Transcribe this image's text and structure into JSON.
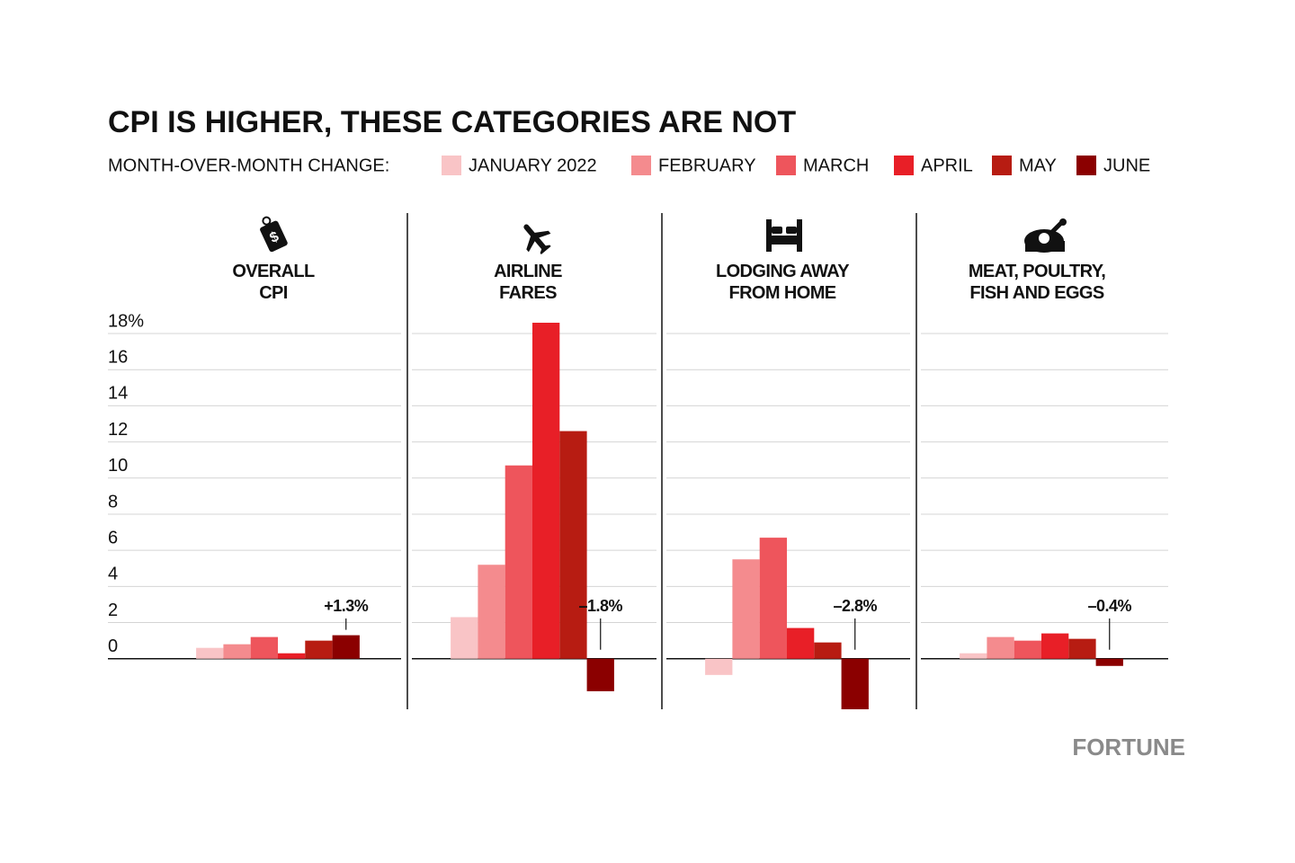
{
  "chart_data": {
    "type": "bar",
    "title": "CPI IS HIGHER, THESE CATEGORIES ARE NOT",
    "legend_title": "MONTH-OVER-MONTH CHANGE:",
    "categories": [
      "OVERALL\nCPI",
      "AIRLINE\nFARES",
      "LODGING AWAY\nFROM HOME",
      "MEAT, POULTRY,\nFISH AND EGGS"
    ],
    "series": [
      {
        "name": "JANUARY 2022",
        "color": "#f9c4c6",
        "values": [
          0.6,
          2.3,
          -0.9,
          0.3
        ]
      },
      {
        "name": "FEBRUARY",
        "color": "#f48b8e",
        "values": [
          0.8,
          5.2,
          5.5,
          1.2
        ]
      },
      {
        "name": "MARCH",
        "color": "#ee555c",
        "values": [
          1.2,
          10.7,
          6.7,
          1.0
        ]
      },
      {
        "name": "APRIL",
        "color": "#e81f27",
        "values": [
          0.3,
          18.6,
          1.7,
          1.4
        ]
      },
      {
        "name": "MAY",
        "color": "#b71c12",
        "values": [
          1.0,
          12.6,
          0.9,
          1.1
        ]
      },
      {
        "name": "JUNE",
        "color": "#8b0000",
        "values": [
          1.3,
          -1.8,
          -2.8,
          -0.4
        ],
        "value_labels": [
          "+1.3%",
          "–1.8%",
          "–2.8%",
          "–0.4%"
        ]
      }
    ],
    "ylim": [
      -2.8,
      18.6
    ],
    "yticks": [
      0,
      2,
      4,
      6,
      8,
      10,
      12,
      14,
      16,
      {
        "value": 18,
        "label": "18%"
      }
    ],
    "grid": true,
    "source": "FORTUNE"
  }
}
